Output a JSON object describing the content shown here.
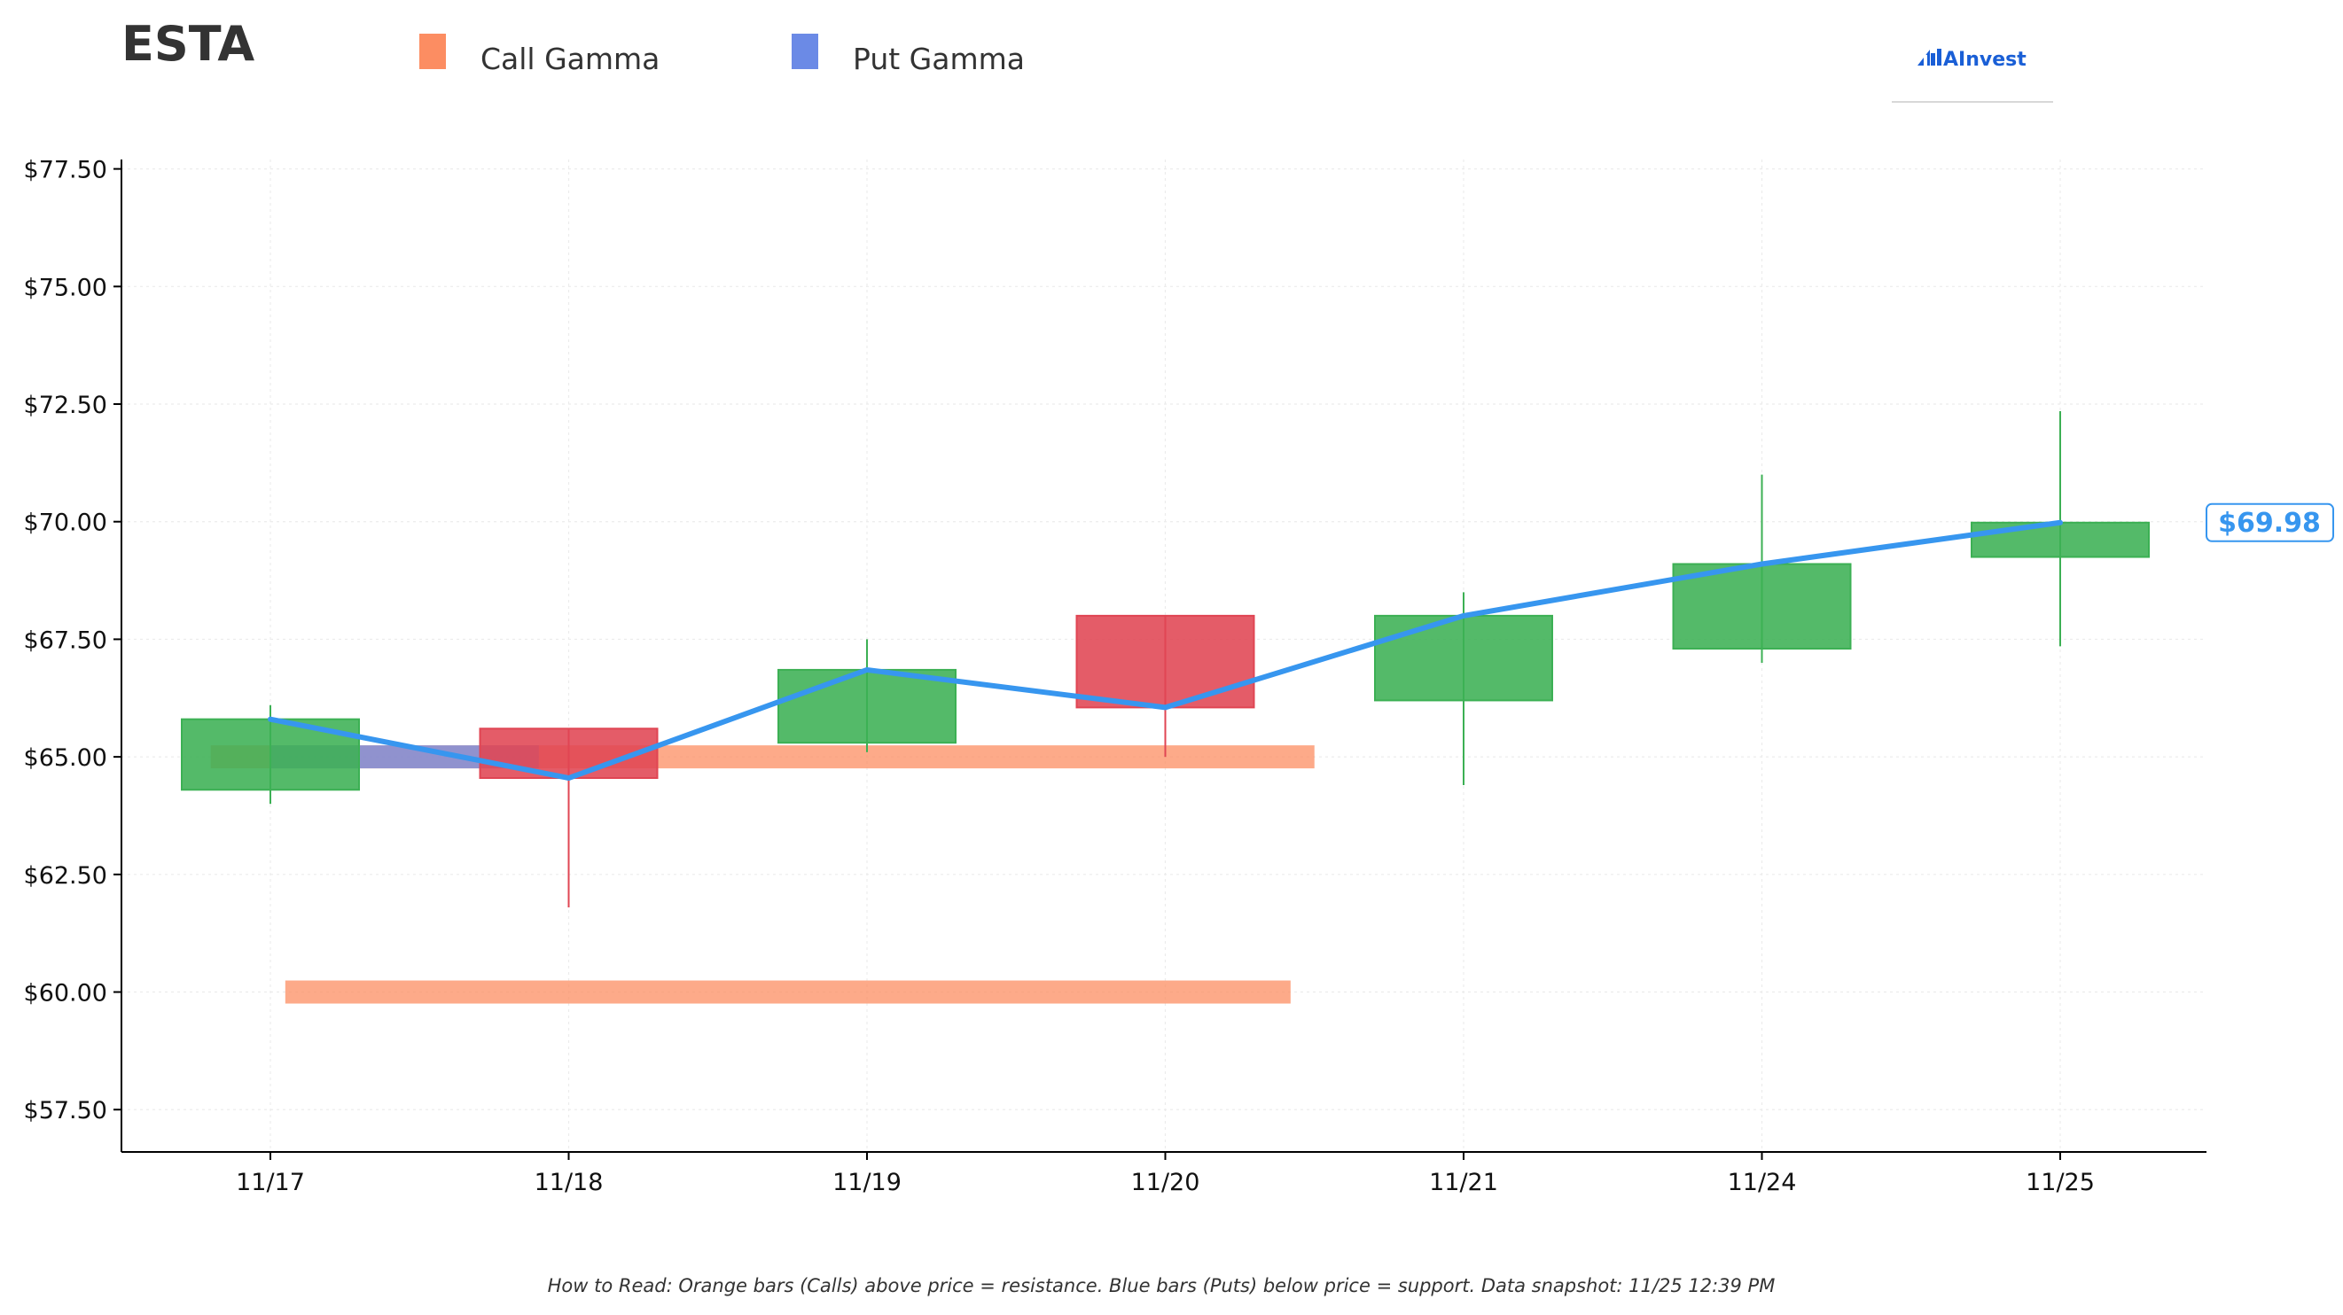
{
  "ticker": "ESTA",
  "brand": "AInvest",
  "legend": [
    {
      "label": "Call Gamma",
      "color": "#fc8d62"
    },
    {
      "label": "Put Gamma",
      "color": "#6b8ae6"
    }
  ],
  "footnote": "How to Read: Orange bars (Calls) above price = resistance. Blue bars (Puts) below price = support. Data snapshot: 11/25 12:39 PM",
  "colors": {
    "up": "#3cb054",
    "down": "#e04553",
    "line": "#3796ef",
    "call": "#fc8d62",
    "put": "#6b8ae6"
  },
  "chart_data": {
    "type": "candlestick",
    "title": "ESTA",
    "x_labels": [
      "11/17",
      "11/18",
      "11/19",
      "11/20",
      "11/21",
      "11/24",
      "11/25"
    ],
    "y_ticks": [
      57.5,
      60.0,
      62.5,
      65.0,
      67.5,
      70.0,
      72.5,
      75.0,
      77.5
    ],
    "y_tick_labels": [
      "$57.50",
      "$60.00",
      "$62.50",
      "$65.00",
      "$67.50",
      "$70.00",
      "$72.50",
      "$75.00",
      "$77.50"
    ],
    "ylim": [
      56.6,
      77.7
    ],
    "grid": true,
    "legend_position": "top-left",
    "candles": [
      {
        "date": "11/17",
        "open": 64.3,
        "close": 65.8,
        "high": 66.1,
        "low": 64.0
      },
      {
        "date": "11/18",
        "open": 65.6,
        "close": 64.55,
        "high": 65.6,
        "low": 61.8
      },
      {
        "date": "11/19",
        "open": 65.3,
        "close": 66.85,
        "high": 67.5,
        "low": 65.1
      },
      {
        "date": "11/20",
        "open": 68.0,
        "close": 66.05,
        "high": 68.0,
        "low": 65.0
      },
      {
        "date": "11/21",
        "open": 66.2,
        "close": 68.0,
        "high": 68.5,
        "low": 64.4
      },
      {
        "date": "11/24",
        "open": 67.3,
        "close": 69.1,
        "high": 71.0,
        "low": 67.0
      },
      {
        "date": "11/25",
        "open": 69.25,
        "close": 69.98,
        "high": 72.35,
        "low": 67.35
      }
    ],
    "price_line": [
      65.8,
      64.55,
      66.85,
      66.05,
      68.0,
      69.1,
      69.98
    ],
    "gamma_bars": [
      {
        "type": "call",
        "strike": 65.0,
        "x_start": -0.2,
        "x_end": 3.5
      },
      {
        "type": "call",
        "strike": 60.0,
        "x_start": 0.05,
        "x_end": 3.42
      },
      {
        "type": "put",
        "strike": 65.0,
        "x_start": 0.0,
        "x_end": 0.9
      }
    ],
    "last_price": 69.98,
    "last_price_label": "$69.98"
  }
}
